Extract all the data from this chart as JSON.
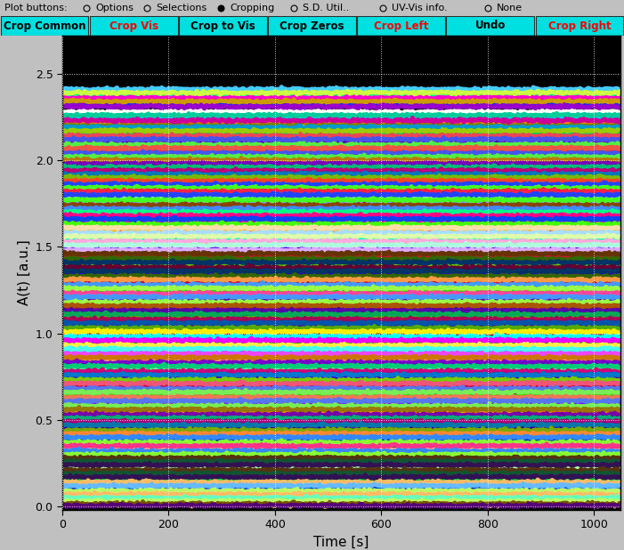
{
  "title_bar_text": "Plot buttons:",
  "radio_options": [
    "Options",
    "Selections",
    "Cropping",
    "S.D. Util..",
    "UV-Vis info.",
    "None"
  ],
  "radio_selected": 2,
  "button_row": [
    "Crop Common",
    "Crop Vis",
    "Crop to Vis",
    "Crop Zeros",
    "Crop Left",
    "Undo",
    "Crop Right"
  ],
  "button_text_colors": [
    "#000000",
    "#ff0000",
    "#000000",
    "#000000",
    "#ff0000",
    "#000000",
    "#ff0000"
  ],
  "plot_bg": "#000000",
  "outer_bg": "#c0c0c0",
  "xlabel": "Time [s]",
  "ylabel": "A(t) [a.u.]",
  "xlim": [
    0,
    1050
  ],
  "ylim": [
    -0.02,
    2.72
  ],
  "yticks": [
    0,
    0.5,
    1.0,
    1.5,
    2.0,
    2.5
  ],
  "xticks": [
    0,
    200,
    400,
    600,
    800,
    1000
  ],
  "grid_color": "#ffffff",
  "n_lines": 200,
  "x_points": 500,
  "noise_amp": 0.004,
  "line_width": 3.5,
  "colors": [
    "#00ff88",
    "#ff00cc",
    "#0033ff",
    "#ffffff",
    "#00ccff",
    "#ff8800",
    "#808000",
    "#ffff00",
    "#00cc66",
    "#cc0088",
    "#6600cc",
    "#0088ff",
    "#ff3333",
    "#33cc33",
    "#3344cc",
    "#ffaa00",
    "#00ddaa",
    "#aa00ff",
    "#ff6600",
    "#4400ff",
    "#00ff55",
    "#ff0055",
    "#0055ff",
    "#88ff00",
    "#ff8888",
    "#88ff88",
    "#8888ff",
    "#ffcc00",
    "#dd00ff",
    "#00ffff",
    "#bbff00",
    "#ff00bb",
    "#00bbff",
    "#ffbb00",
    "#bb00ff",
    "#00ffbb",
    "#ff5500",
    "#5500ff",
    "#00ff44",
    "#ff0044",
    "#0066cc",
    "#66cc00",
    "#cc3300",
    "#3300cc",
    "#00cc33",
    "#cc0033",
    "#0033cc",
    "#33cc00",
    "#aa6600",
    "#6600aa",
    "#00aa66",
    "#aa0066",
    "#0066aa",
    "#66aa00",
    "#884422",
    "#442288",
    "#228844",
    "#882244",
    "#224488",
    "#448822",
    "#ff6699",
    "#6699ff",
    "#99ff66",
    "#ff9966",
    "#9966ff",
    "#66ff99",
    "#cc4400",
    "#4400cc",
    "#00cc44",
    "#cc0044",
    "#0044cc",
    "#44cc00",
    "#ff1188",
    "#8811ff",
    "#11ff88",
    "#ff8811",
    "#88ff11",
    "#11ff88",
    "#aa3300",
    "#3300aa",
    "#00aa33",
    "#aa0033",
    "#0033aa",
    "#33aa00",
    "#ffaa88",
    "#aa88ff",
    "#88ffaa",
    "#ffaa88",
    "#88aaff",
    "#aaffaa",
    "#dd3300",
    "#3300dd",
    "#00dd33",
    "#dd0033",
    "#0033dd",
    "#33dd00",
    "#ffcc44",
    "#44ffcc",
    "#cc44ff",
    "#ffcc44",
    "#44ccff",
    "#ccff44",
    "#cc9900",
    "#9900cc",
    "#00cc99",
    "#cc0099",
    "#0099cc",
    "#99cc00",
    "#ee4455",
    "#4455ee",
    "#55ee44",
    "#ee5544",
    "#4455ee",
    "#55ee44",
    "#bb7700",
    "#7700bb",
    "#00bb77",
    "#bb0077",
    "#0077bb",
    "#77bb00",
    "#ff4422",
    "#2244ff",
    "#44ff22",
    "#ff2244",
    "#2244ff",
    "#44ff22",
    "#884400",
    "#4488ff",
    "#00ff88",
    "#ff0088",
    "#0044ff",
    "#44ff00",
    "#ffddaa",
    "#aaddff",
    "#ddffaa",
    "#ffaadd",
    "#aaffdd",
    "#ddaaff",
    "#663300",
    "#336600",
    "#003366",
    "#660033",
    "#003366",
    "#336600",
    "#ff9944",
    "#4499ff",
    "#99ff44",
    "#ff4499",
    "#4499ff",
    "#99ff44",
    "#aa5500",
    "#5500aa",
    "#00aa55",
    "#aa0055",
    "#0055aa",
    "#55aa00",
    "#ffee00",
    "#00ffee",
    "#ee00ff",
    "#ffee44",
    "#44ffee",
    "#ee44ff",
    "#cc7700",
    "#7700cc",
    "#00cc77",
    "#cc0077",
    "#0077cc",
    "#77cc00",
    "#ee5577",
    "#5577ee",
    "#77ee55",
    "#ee7755",
    "#5577ee",
    "#77ee55",
    "#997700",
    "#7700aa",
    "#00aa77",
    "#aa0077",
    "#0077aa",
    "#77aa00",
    "#ff8833",
    "#3388ff",
    "#88ff33",
    "#ff3388",
    "#3388ff",
    "#88ff33",
    "#553311",
    "#115533",
    "#331155",
    "#553311",
    "#115533",
    "#331155",
    "#ffbb66",
    "#66bbff",
    "#bbff66",
    "#ffbb66",
    "#66ffbb",
    "#bbff66",
    "#775500",
    "#550077",
    "#007755"
  ],
  "base_values": [
    2.38,
    2.36,
    2.32,
    2.28,
    2.25,
    2.22,
    2.2,
    2.18,
    2.15,
    2.13,
    2.1,
    2.08,
    2.06,
    2.03,
    2.01,
    1.99,
    1.97,
    1.95,
    1.93,
    1.91,
    1.89,
    1.87,
    1.85,
    1.83,
    1.81,
    1.79,
    1.76,
    1.73,
    1.71,
    1.69,
    1.67,
    1.65,
    1.62,
    1.59,
    1.57,
    1.54,
    1.52,
    1.49,
    1.47,
    1.44,
    1.42,
    1.39,
    1.37,
    1.34,
    1.32,
    1.29,
    1.27,
    1.24,
    1.22,
    1.19,
    1.17,
    1.14,
    1.12,
    1.09,
    1.07,
    1.04,
    1.02,
    0.99,
    0.97,
    0.94,
    0.92,
    0.89,
    0.87,
    0.84,
    0.82,
    0.79,
    0.77,
    0.74,
    0.72,
    0.69,
    0.67,
    0.64,
    0.62,
    0.59,
    0.57,
    0.54,
    0.52,
    0.5,
    0.48,
    0.45,
    0.43,
    0.41,
    0.38,
    0.36,
    0.33,
    0.31,
    0.29,
    0.27,
    0.25,
    0.22,
    0.2,
    0.18,
    0.15,
    0.13,
    0.1,
    0.08,
    0.06,
    0.04,
    0.02,
    0.01,
    2.41,
    2.39,
    2.34,
    2.31,
    2.26,
    2.23,
    2.19,
    2.17,
    2.14,
    2.12,
    2.09,
    2.07,
    2.04,
    2.02,
    2.0,
    1.98,
    1.96,
    1.94,
    1.92,
    1.9,
    1.88,
    1.86,
    1.84,
    1.82,
    1.8,
    1.77,
    1.74,
    1.72,
    1.7,
    1.68,
    1.66,
    1.63,
    1.61,
    1.58,
    1.56,
    1.53,
    1.51,
    1.48,
    1.46,
    1.43,
    1.41,
    1.38,
    1.36,
    1.33,
    1.31,
    1.28,
    1.26,
    1.23,
    1.21,
    1.18,
    1.16,
    1.13,
    1.11,
    1.08,
    1.06,
    1.03,
    1.01,
    0.98,
    0.96,
    0.93,
    0.91,
    0.88,
    0.86,
    0.83,
    0.81,
    0.78,
    0.76,
    0.73,
    0.71,
    0.68,
    0.66,
    0.63,
    0.61,
    0.58,
    0.56,
    0.53,
    0.51,
    0.49,
    0.47,
    0.44,
    0.42,
    0.4,
    0.37,
    0.35,
    0.32,
    0.3,
    0.28,
    0.26,
    0.24,
    0.21,
    0.19,
    0.17,
    0.14,
    0.12,
    0.09,
    0.07,
    0.05,
    0.03,
    0.015,
    0.005
  ]
}
